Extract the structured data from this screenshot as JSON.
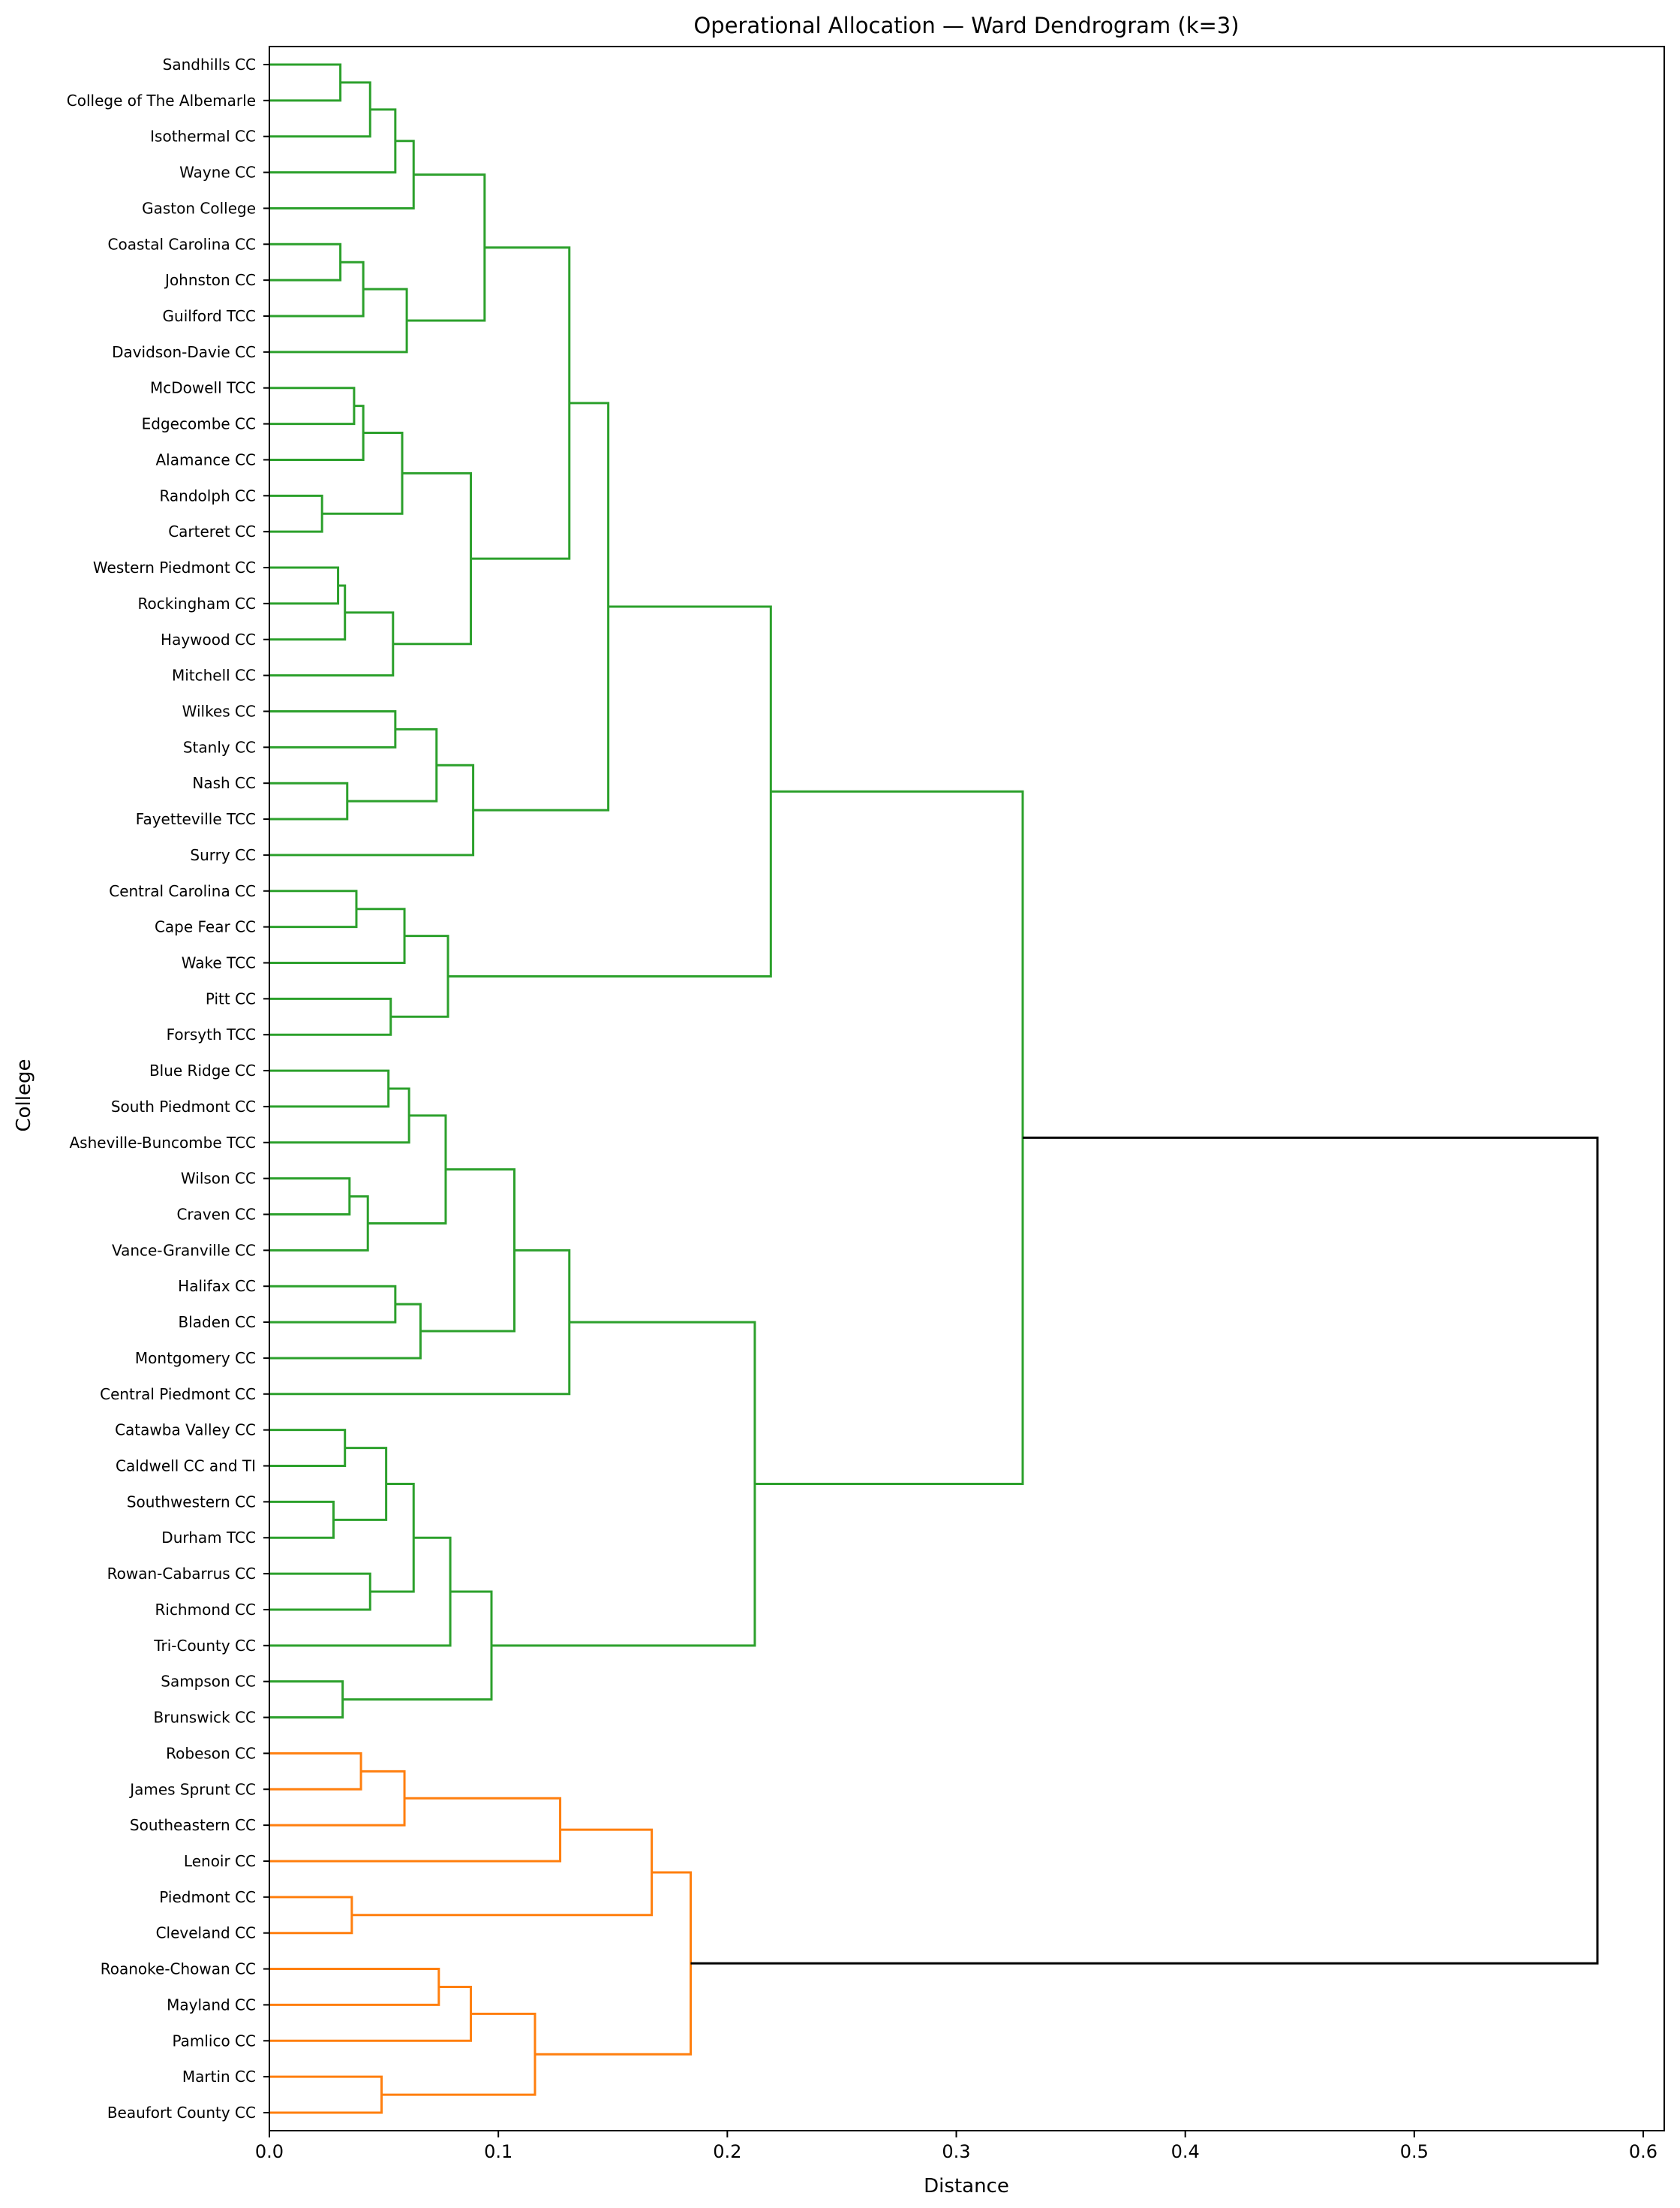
{
  "chart_data": {
    "type": "dendrogram",
    "title": "Operational Allocation — Ward Dendrogram (k=3)",
    "xlabel": "Distance",
    "ylabel": "College",
    "xlim": [
      0,
      0.61
    ],
    "xticks": [
      "0.0",
      "0.1",
      "0.2",
      "0.3",
      "0.4",
      "0.5",
      "0.6"
    ],
    "grid": false,
    "colors": {
      "green": "#2ca02c",
      "orange": "#ff7f0e",
      "root": "#000000"
    },
    "leaves": [
      "Sandhills CC",
      "College of The Albemarle",
      "Isothermal CC",
      "Wayne CC",
      "Gaston College",
      "Coastal Carolina CC",
      "Johnston CC",
      "Guilford TCC",
      "Davidson-Davie CC",
      "McDowell TCC",
      "Edgecombe CC",
      "Alamance CC",
      "Randolph CC",
      "Carteret CC",
      "Western Piedmont CC",
      "Rockingham CC",
      "Haywood CC",
      "Mitchell CC",
      "Wilkes CC",
      "Stanly CC",
      "Nash CC",
      "Fayetteville TCC",
      "Surry CC",
      "Central Carolina CC",
      "Cape Fear CC",
      "Wake TCC",
      "Pitt CC",
      "Forsyth TCC",
      "Blue Ridge CC",
      "South Piedmont CC",
      "Asheville-Buncombe TCC",
      "Wilson CC",
      "Craven CC",
      "Vance-Granville CC",
      "Halifax CC",
      "Bladen CC",
      "Montgomery CC",
      "Central Piedmont CC",
      "Catawba Valley CC",
      "Caldwell CC and TI",
      "Southwestern CC",
      "Durham TCC",
      "Rowan-Cabarrus CC",
      "Richmond CC",
      "Tri-County CC",
      "Sampson CC",
      "Brunswick CC",
      "Robeson CC",
      "James Sprunt CC",
      "Southeastern CC",
      "Lenoir CC",
      "Piedmont CC",
      "Cleveland CC",
      "Roanoke-Chowan CC",
      "Mayland CC",
      "Pamlico CC",
      "Martin CC",
      "Beaufort County CC"
    ],
    "merges": [
      {
        "a": "L0",
        "b": "L1",
        "height": 0.031,
        "cluster": "green"
      },
      {
        "a": "M0",
        "b": "L2",
        "height": 0.044,
        "cluster": "green"
      },
      {
        "a": "M1",
        "b": "L3",
        "height": 0.055,
        "cluster": "green"
      },
      {
        "a": "M2",
        "b": "L4",
        "height": 0.063,
        "cluster": "green"
      },
      {
        "a": "L5",
        "b": "L6",
        "height": 0.031,
        "cluster": "green"
      },
      {
        "a": "M4",
        "b": "L7",
        "height": 0.041,
        "cluster": "green"
      },
      {
        "a": "M5",
        "b": "L8",
        "height": 0.06,
        "cluster": "green"
      },
      {
        "a": "M3",
        "b": "M6",
        "height": 0.094,
        "cluster": "green"
      },
      {
        "a": "L9",
        "b": "L10",
        "height": 0.037,
        "cluster": "green"
      },
      {
        "a": "M8",
        "b": "L11",
        "height": 0.041,
        "cluster": "green"
      },
      {
        "a": "L12",
        "b": "L13",
        "height": 0.023,
        "cluster": "green"
      },
      {
        "a": "M9",
        "b": "M10",
        "height": 0.058,
        "cluster": "green"
      },
      {
        "a": "L14",
        "b": "L15",
        "height": 0.03,
        "cluster": "green"
      },
      {
        "a": "M12",
        "b": "L16",
        "height": 0.033,
        "cluster": "green"
      },
      {
        "a": "M13",
        "b": "L17",
        "height": 0.054,
        "cluster": "green"
      },
      {
        "a": "M11",
        "b": "M14",
        "height": 0.088,
        "cluster": "green"
      },
      {
        "a": "M7",
        "b": "M15",
        "height": 0.131,
        "cluster": "green"
      },
      {
        "a": "L18",
        "b": "L19",
        "height": 0.055,
        "cluster": "green"
      },
      {
        "a": "L20",
        "b": "L21",
        "height": 0.034,
        "cluster": "green"
      },
      {
        "a": "M17",
        "b": "M18",
        "height": 0.073,
        "cluster": "green"
      },
      {
        "a": "M19",
        "b": "L22",
        "height": 0.089,
        "cluster": "green"
      },
      {
        "a": "M16",
        "b": "M20",
        "height": 0.148,
        "cluster": "green"
      },
      {
        "a": "L23",
        "b": "L24",
        "height": 0.038,
        "cluster": "green"
      },
      {
        "a": "M22",
        "b": "L25",
        "height": 0.059,
        "cluster": "green"
      },
      {
        "a": "L26",
        "b": "L27",
        "height": 0.053,
        "cluster": "green"
      },
      {
        "a": "M23",
        "b": "M24",
        "height": 0.078,
        "cluster": "green"
      },
      {
        "a": "M21",
        "b": "M25",
        "height": 0.219,
        "cluster": "green"
      },
      {
        "a": "L28",
        "b": "L29",
        "height": 0.052,
        "cluster": "green"
      },
      {
        "a": "M27",
        "b": "L30",
        "height": 0.061,
        "cluster": "green"
      },
      {
        "a": "L31",
        "b": "L32",
        "height": 0.035,
        "cluster": "green"
      },
      {
        "a": "M29",
        "b": "L33",
        "height": 0.043,
        "cluster": "green"
      },
      {
        "a": "M28",
        "b": "M30",
        "height": 0.077,
        "cluster": "green"
      },
      {
        "a": "L34",
        "b": "L35",
        "height": 0.055,
        "cluster": "green"
      },
      {
        "a": "M32",
        "b": "L36",
        "height": 0.066,
        "cluster": "green"
      },
      {
        "a": "M31",
        "b": "M33",
        "height": 0.107,
        "cluster": "green"
      },
      {
        "a": "M34",
        "b": "L37",
        "height": 0.131,
        "cluster": "green"
      },
      {
        "a": "L38",
        "b": "L39",
        "height": 0.033,
        "cluster": "green"
      },
      {
        "a": "L40",
        "b": "L41",
        "height": 0.028,
        "cluster": "green"
      },
      {
        "a": "M36",
        "b": "M37",
        "height": 0.051,
        "cluster": "green"
      },
      {
        "a": "L42",
        "b": "L43",
        "height": 0.044,
        "cluster": "green"
      },
      {
        "a": "M38",
        "b": "M39",
        "height": 0.063,
        "cluster": "green"
      },
      {
        "a": "M40",
        "b": "L44",
        "height": 0.079,
        "cluster": "green"
      },
      {
        "a": "L45",
        "b": "L46",
        "height": 0.032,
        "cluster": "green"
      },
      {
        "a": "M41",
        "b": "M42",
        "height": 0.097,
        "cluster": "green"
      },
      {
        "a": "M35",
        "b": "M43",
        "height": 0.212,
        "cluster": "green"
      },
      {
        "a": "M26",
        "b": "M44",
        "height": 0.329,
        "cluster": "green"
      },
      {
        "a": "L47",
        "b": "L48",
        "height": 0.04,
        "cluster": "orange"
      },
      {
        "a": "M46",
        "b": "L49",
        "height": 0.059,
        "cluster": "orange"
      },
      {
        "a": "M47",
        "b": "L50",
        "height": 0.127,
        "cluster": "orange"
      },
      {
        "a": "L51",
        "b": "L52",
        "height": 0.036,
        "cluster": "orange"
      },
      {
        "a": "M48",
        "b": "M49",
        "height": 0.167,
        "cluster": "orange"
      },
      {
        "a": "L53",
        "b": "L54",
        "height": 0.074,
        "cluster": "orange"
      },
      {
        "a": "M51",
        "b": "L55",
        "height": 0.088,
        "cluster": "orange"
      },
      {
        "a": "L56",
        "b": "L57",
        "height": 0.049,
        "cluster": "orange"
      },
      {
        "a": "M52",
        "b": "M53",
        "height": 0.116,
        "cluster": "orange"
      },
      {
        "a": "M50",
        "b": "M54",
        "height": 0.184,
        "cluster": "orange"
      },
      {
        "a": "M45",
        "b": "M55",
        "height": 0.58,
        "cluster": "root"
      }
    ]
  }
}
